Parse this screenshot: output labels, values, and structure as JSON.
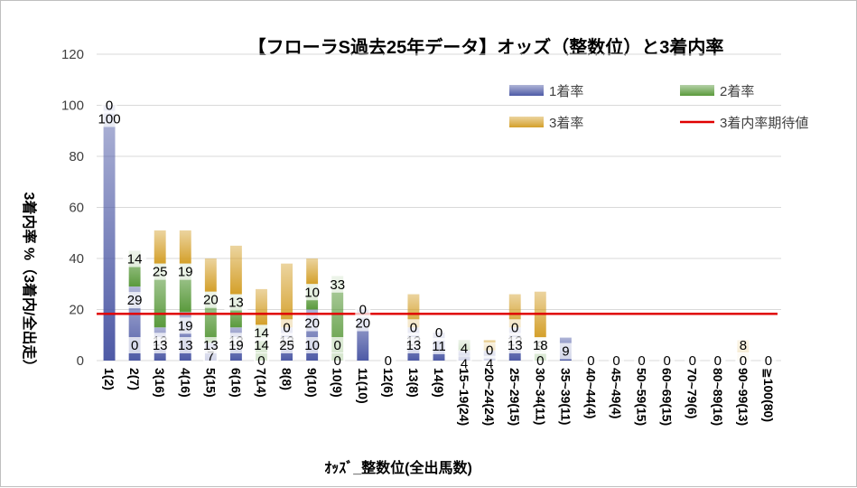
{
  "chart_data": {
    "type": "bar",
    "title": "【フローラS過去25年データ】オッズ（整数位）と3着内率",
    "xlabel": "ｵｯｽﾞ_整数位(全出馬数)",
    "ylabel": "3着内率 %（3着内/全出走）",
    "ylim": [
      0,
      120
    ],
    "yticks": [
      "0",
      "20",
      "40",
      "60",
      "80",
      "100",
      "120"
    ],
    "categories": [
      "1(2)",
      "2(7)",
      "3(16)",
      "4(16)",
      "5(15)",
      "6(16)",
      "7(14)",
      "8(8)",
      "9(10)",
      "10(9)",
      "11(10)",
      "12(6)",
      "13(8)",
      "14(9)",
      "15~19(24)",
      "20~24(24)",
      "25~29(15)",
      "30~34(11)",
      "35~39(11)",
      "40~44(4)",
      "45~49(4)",
      "50~59(15)",
      "60~69(15)",
      "70~79(6)",
      "80~89(16)",
      "90~99(13)",
      "≧100(80)"
    ],
    "series": [
      {
        "name": "1着率",
        "color": "#4e5aa6",
        "values": [
          100,
          29,
          13,
          19,
          7,
          13,
          0,
          13,
          20,
          0,
          20,
          0,
          13,
          11,
          4,
          4,
          13,
          0,
          9,
          0,
          0,
          0,
          0,
          0,
          0,
          0,
          0
        ]
      },
      {
        "name": "2着率",
        "color": "#5a9a3c",
        "values": [
          0,
          14,
          25,
          19,
          20,
          13,
          14,
          0,
          10,
          33,
          0,
          0,
          0,
          0,
          4,
          0,
          0,
          9,
          0,
          0,
          0,
          0,
          0,
          0,
          0,
          0,
          0
        ]
      },
      {
        "name": "3着率",
        "color": "#d4a02a",
        "values": [
          0,
          0,
          13,
          13,
          13,
          19,
          14,
          25,
          10,
          0,
          0,
          0,
          13,
          0,
          0,
          4,
          13,
          18,
          0,
          0,
          0,
          0,
          0,
          0,
          0,
          8,
          0
        ]
      }
    ],
    "reference_line": {
      "name": "3着内率期待値",
      "value": 18.3,
      "color": "#e00000"
    },
    "data_labels": [
      [
        "100",
        "0",
        ""
      ],
      [
        "29",
        "14",
        "0"
      ],
      [
        "13",
        "25",
        "13"
      ],
      [
        "19",
        "19",
        "13"
      ],
      [
        "7",
        "20",
        "13"
      ],
      [
        "13",
        "13",
        "19"
      ],
      [
        "0",
        "14",
        "14"
      ],
      [
        "13",
        "0",
        "25"
      ],
      [
        "20",
        "10",
        "10"
      ],
      [
        "0",
        "33",
        "0"
      ],
      [
        "20",
        "0",
        ""
      ],
      [
        "0",
        "",
        ""
      ],
      [
        "13",
        "0",
        "13"
      ],
      [
        "11",
        "0",
        ""
      ],
      [
        "4",
        "4",
        ""
      ],
      [
        "4",
        "0",
        ""
      ],
      [
        "13",
        "0",
        "13"
      ],
      [
        "0",
        "9",
        "18"
      ],
      [
        "9",
        "",
        ""
      ],
      [
        "0",
        "",
        ""
      ],
      [
        "0",
        "",
        ""
      ],
      [
        "0",
        "",
        ""
      ],
      [
        "0",
        "",
        ""
      ],
      [
        "0",
        "",
        ""
      ],
      [
        "0",
        "0",
        ""
      ],
      [
        "0",
        "0",
        "8"
      ],
      [
        "0",
        "",
        ""
      ]
    ],
    "legend": [
      "1着率",
      "2着率",
      "3着率",
      "3着内率期待値"
    ],
    "legend_position": "top-right",
    "grid": true
  }
}
